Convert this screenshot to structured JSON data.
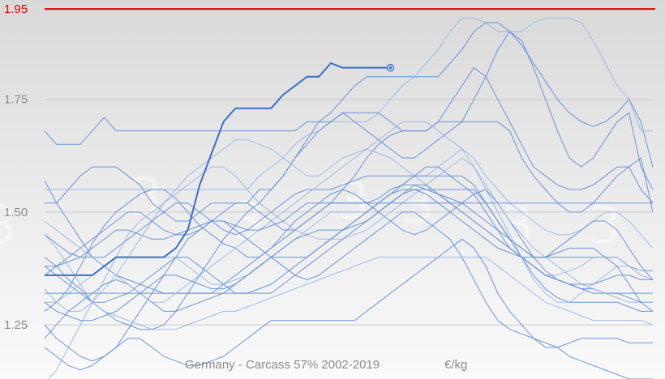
{
  "chart_data": {
    "type": "line",
    "title": "Germany - Carcass 57% 2002-2019",
    "unit": "€/kg",
    "xlabel": "",
    "ylabel": "",
    "x_count": 52,
    "ylim": [
      1.13,
      1.97
    ],
    "y_ticks": [
      1.25,
      1.5,
      1.75
    ],
    "y_tick_labels": [
      "1.25",
      "1.50",
      "1.75"
    ],
    "grid": true,
    "reference_line": {
      "value": 1.95,
      "label": "1.95",
      "color": "#e00000"
    },
    "colors": {
      "highlight": "#3a6fc8",
      "background_series": "#5b8ad8",
      "light_series": "#8fb0e6"
    },
    "watermark": "3",
    "highlighted_series": {
      "values": [
        1.36,
        1.36,
        1.36,
        1.36,
        1.36,
        1.38,
        1.4,
        1.4,
        1.4,
        1.4,
        1.4,
        1.42,
        1.46,
        1.56,
        1.63,
        1.7,
        1.73,
        1.73,
        1.73,
        1.73,
        1.76,
        1.78,
        1.8,
        1.8,
        1.83,
        1.82,
        1.82,
        1.82,
        1.82,
        1.82
      ]
    },
    "series": [
      {
        "values": [
          1.68,
          1.65,
          1.65,
          1.65,
          1.68,
          1.71,
          1.68,
          1.68,
          1.68,
          1.68,
          1.68,
          1.68,
          1.68,
          1.68,
          1.68,
          1.68,
          1.68,
          1.68,
          1.68,
          1.68,
          1.68,
          1.68,
          1.7,
          1.7,
          1.7,
          1.72,
          1.72,
          1.72,
          1.72,
          1.7,
          1.68,
          1.68,
          1.68,
          1.7,
          1.7,
          1.7,
          1.7,
          1.7,
          1.7,
          1.68,
          1.62,
          1.58,
          1.55,
          1.52,
          1.5,
          1.5,
          1.52,
          1.55,
          1.58,
          1.6,
          1.62,
          1.5
        ]
      },
      {
        "values": [
          1.52,
          1.52,
          1.55,
          1.58,
          1.6,
          1.6,
          1.6,
          1.58,
          1.56,
          1.52,
          1.5,
          1.48,
          1.48,
          1.5,
          1.52,
          1.52,
          1.52,
          1.52,
          1.55,
          1.55,
          1.58,
          1.62,
          1.66,
          1.7,
          1.72,
          1.75,
          1.78,
          1.8,
          1.8,
          1.8,
          1.8,
          1.8,
          1.8,
          1.8,
          1.83,
          1.86,
          1.9,
          1.92,
          1.92,
          1.9,
          1.87,
          1.83,
          1.79,
          1.75,
          1.72,
          1.7,
          1.69,
          1.7,
          1.72,
          1.75,
          1.7,
          1.6
        ]
      },
      {
        "values": [
          1.55,
          1.55,
          1.55,
          1.55,
          1.55,
          1.55,
          1.55,
          1.55,
          1.55,
          1.55,
          1.55,
          1.55,
          1.55,
          1.55,
          1.55,
          1.55,
          1.55,
          1.55,
          1.58,
          1.6,
          1.62,
          1.65,
          1.67,
          1.68,
          1.7,
          1.7,
          1.7,
          1.7,
          1.72,
          1.75,
          1.78,
          1.8,
          1.83,
          1.86,
          1.9,
          1.93,
          1.93,
          1.92,
          1.9,
          1.9,
          1.9,
          1.92,
          1.93,
          1.93,
          1.93,
          1.92,
          1.88,
          1.83,
          1.78,
          1.75,
          1.68,
          1.68
        ]
      },
      {
        "values": [
          1.4,
          1.38,
          1.35,
          1.33,
          1.3,
          1.28,
          1.26,
          1.25,
          1.24,
          1.24,
          1.25,
          1.28,
          1.32,
          1.36,
          1.4,
          1.44,
          1.47,
          1.5,
          1.52,
          1.55,
          1.58,
          1.62,
          1.65,
          1.68,
          1.7,
          1.72,
          1.7,
          1.68,
          1.66,
          1.64,
          1.62,
          1.62,
          1.64,
          1.66,
          1.68,
          1.7,
          1.75,
          1.8,
          1.86,
          1.9,
          1.88,
          1.82,
          1.75,
          1.68,
          1.62,
          1.6,
          1.62,
          1.66,
          1.7,
          1.72,
          1.6,
          1.55
        ]
      },
      {
        "values": [
          1.28,
          1.3,
          1.33,
          1.38,
          1.43,
          1.47,
          1.5,
          1.52,
          1.54,
          1.55,
          1.55,
          1.53,
          1.5,
          1.47,
          1.45,
          1.43,
          1.42,
          1.4,
          1.4,
          1.42,
          1.44,
          1.46,
          1.48,
          1.5,
          1.52,
          1.55,
          1.58,
          1.62,
          1.65,
          1.67,
          1.68,
          1.68,
          1.68,
          1.7,
          1.74,
          1.78,
          1.82,
          1.8,
          1.75,
          1.7,
          1.65,
          1.6,
          1.58,
          1.56,
          1.55,
          1.55,
          1.56,
          1.58,
          1.6,
          1.6,
          1.55,
          1.52
        ]
      },
      {
        "values": [
          1.33,
          1.3,
          1.28,
          1.28,
          1.3,
          1.33,
          1.36,
          1.4,
          1.44,
          1.48,
          1.52,
          1.55,
          1.58,
          1.6,
          1.62,
          1.64,
          1.66,
          1.66,
          1.65,
          1.64,
          1.62,
          1.6,
          1.58,
          1.58,
          1.6,
          1.62,
          1.63,
          1.64,
          1.63,
          1.62,
          1.6,
          1.58,
          1.58,
          1.6,
          1.62,
          1.64,
          1.62,
          1.58,
          1.55,
          1.52,
          1.5,
          1.48,
          1.46,
          1.45,
          1.45,
          1.46,
          1.48,
          1.5,
          1.5,
          1.48,
          1.45,
          1.42
        ]
      },
      {
        "values": [
          1.45,
          1.43,
          1.41,
          1.4,
          1.4,
          1.4,
          1.42,
          1.44,
          1.46,
          1.48,
          1.5,
          1.52,
          1.52,
          1.5,
          1.48,
          1.46,
          1.45,
          1.46,
          1.48,
          1.5,
          1.52,
          1.54,
          1.55,
          1.55,
          1.55,
          1.56,
          1.57,
          1.58,
          1.58,
          1.58,
          1.58,
          1.58,
          1.58,
          1.58,
          1.58,
          1.58,
          1.56,
          1.52,
          1.48,
          1.44,
          1.42,
          1.4,
          1.4,
          1.42,
          1.44,
          1.46,
          1.48,
          1.48,
          1.46,
          1.42,
          1.38,
          1.35
        ]
      },
      {
        "values": [
          1.36,
          1.38,
          1.4,
          1.42,
          1.44,
          1.46,
          1.48,
          1.5,
          1.5,
          1.48,
          1.46,
          1.45,
          1.45,
          1.46,
          1.48,
          1.5,
          1.52,
          1.52,
          1.5,
          1.48,
          1.46,
          1.46,
          1.48,
          1.5,
          1.52,
          1.52,
          1.52,
          1.52,
          1.53,
          1.55,
          1.56,
          1.56,
          1.55,
          1.54,
          1.53,
          1.52,
          1.5,
          1.48,
          1.46,
          1.44,
          1.42,
          1.4,
          1.4,
          1.4,
          1.4,
          1.4,
          1.4,
          1.4,
          1.4,
          1.38,
          1.37,
          1.37
        ]
      },
      {
        "values": [
          1.3,
          1.3,
          1.32,
          1.34,
          1.36,
          1.38,
          1.4,
          1.4,
          1.4,
          1.4,
          1.4,
          1.4,
          1.38,
          1.36,
          1.34,
          1.34,
          1.35,
          1.36,
          1.38,
          1.4,
          1.42,
          1.44,
          1.46,
          1.48,
          1.5,
          1.5,
          1.5,
          1.5,
          1.52,
          1.54,
          1.56,
          1.58,
          1.56,
          1.54,
          1.52,
          1.5,
          1.48,
          1.46,
          1.44,
          1.42,
          1.4,
          1.38,
          1.36,
          1.36,
          1.37,
          1.38,
          1.4,
          1.4,
          1.4,
          1.38,
          1.36,
          1.35
        ]
      },
      {
        "values": [
          1.38,
          1.36,
          1.34,
          1.32,
          1.3,
          1.3,
          1.31,
          1.32,
          1.34,
          1.36,
          1.38,
          1.4,
          1.4,
          1.38,
          1.36,
          1.34,
          1.32,
          1.32,
          1.33,
          1.34,
          1.36,
          1.38,
          1.4,
          1.42,
          1.44,
          1.46,
          1.48,
          1.5,
          1.52,
          1.54,
          1.56,
          1.58,
          1.6,
          1.6,
          1.58,
          1.56,
          1.54,
          1.5,
          1.46,
          1.42,
          1.4,
          1.38,
          1.36,
          1.35,
          1.34,
          1.33,
          1.32,
          1.32,
          1.32,
          1.31,
          1.3,
          1.3
        ]
      },
      {
        "values": [
          1.22,
          1.25,
          1.28,
          1.3,
          1.32,
          1.34,
          1.35,
          1.34,
          1.32,
          1.3,
          1.28,
          1.28,
          1.29,
          1.3,
          1.31,
          1.32,
          1.34,
          1.36,
          1.38,
          1.4,
          1.4,
          1.4,
          1.4,
          1.42,
          1.44,
          1.46,
          1.48,
          1.5,
          1.52,
          1.54,
          1.55,
          1.55,
          1.55,
          1.55,
          1.55,
          1.55,
          1.55,
          1.52,
          1.48,
          1.44,
          1.4,
          1.36,
          1.33,
          1.31,
          1.3,
          1.3,
          1.3,
          1.3,
          1.3,
          1.29,
          1.28,
          1.28
        ]
      },
      {
        "values": [
          1.45,
          1.42,
          1.38,
          1.34,
          1.3,
          1.28,
          1.27,
          1.26,
          1.25,
          1.24,
          1.24,
          1.24,
          1.25,
          1.26,
          1.27,
          1.28,
          1.28,
          1.29,
          1.3,
          1.31,
          1.32,
          1.33,
          1.34,
          1.35,
          1.36,
          1.37,
          1.38,
          1.39,
          1.4,
          1.4,
          1.4,
          1.4,
          1.4,
          1.4,
          1.4,
          1.4,
          1.4,
          1.4,
          1.38,
          1.36,
          1.34,
          1.32,
          1.3,
          1.29,
          1.28,
          1.27,
          1.26,
          1.26,
          1.26,
          1.26,
          1.26,
          1.25
        ]
      },
      {
        "values": [
          1.32,
          1.32,
          1.32,
          1.32,
          1.32,
          1.32,
          1.32,
          1.32,
          1.32,
          1.32,
          1.32,
          1.32,
          1.32,
          1.32,
          1.32,
          1.32,
          1.32,
          1.32,
          1.32,
          1.32,
          1.34,
          1.36,
          1.38,
          1.4,
          1.42,
          1.44,
          1.46,
          1.48,
          1.5,
          1.52,
          1.54,
          1.56,
          1.56,
          1.54,
          1.52,
          1.5,
          1.48,
          1.46,
          1.44,
          1.42,
          1.4,
          1.38,
          1.36,
          1.35,
          1.34,
          1.33,
          1.33,
          1.32,
          1.32,
          1.32,
          1.32,
          1.32
        ]
      },
      {
        "values": [
          1.57,
          1.52,
          1.48,
          1.44,
          1.4,
          1.38,
          1.36,
          1.35,
          1.34,
          1.33,
          1.32,
          1.32,
          1.32,
          1.32,
          1.32,
          1.34,
          1.36,
          1.38,
          1.4,
          1.42,
          1.45,
          1.48,
          1.5,
          1.52,
          1.54,
          1.55,
          1.54,
          1.52,
          1.5,
          1.48,
          1.46,
          1.45,
          1.46,
          1.48,
          1.5,
          1.52,
          1.54,
          1.55,
          1.52,
          1.48,
          1.44,
          1.4,
          1.37,
          1.35,
          1.34,
          1.34,
          1.34,
          1.35,
          1.36,
          1.36,
          1.35,
          1.35
        ]
      },
      {
        "values": [
          1.12,
          1.15,
          1.2,
          1.25,
          1.3,
          1.35,
          1.4,
          1.45,
          1.48,
          1.5,
          1.52,
          1.54,
          1.56,
          1.58,
          1.6,
          1.6,
          1.58,
          1.55,
          1.52,
          1.5,
          1.48,
          1.46,
          1.45,
          1.44,
          1.44,
          1.44,
          1.45,
          1.46,
          1.48,
          1.5,
          1.52,
          1.54,
          1.56,
          1.58,
          1.6,
          1.62,
          1.6,
          1.55,
          1.5,
          1.45,
          1.4,
          1.35,
          1.32,
          1.3,
          1.3,
          1.32,
          1.34,
          1.36,
          1.38,
          1.38,
          1.37,
          1.37
        ]
      },
      {
        "values": [
          1.25,
          1.22,
          1.2,
          1.18,
          1.17,
          1.18,
          1.2,
          1.22,
          1.22,
          1.2,
          1.18,
          1.17,
          1.16,
          1.16,
          1.17,
          1.18,
          1.2,
          1.22,
          1.24,
          1.26,
          1.26,
          1.26,
          1.26,
          1.26,
          1.26,
          1.26,
          1.26,
          1.28,
          1.3,
          1.32,
          1.34,
          1.36,
          1.38,
          1.4,
          1.42,
          1.44,
          1.42,
          1.38,
          1.32,
          1.28,
          1.25,
          1.22,
          1.2,
          1.2,
          1.21,
          1.22,
          1.22,
          1.22,
          1.22,
          1.21,
          1.21,
          1.21
        ]
      },
      {
        "values": [
          1.2,
          1.18,
          1.16,
          1.15,
          1.16,
          1.18,
          1.2,
          1.24,
          1.28,
          1.32,
          1.36,
          1.4,
          1.44,
          1.46,
          1.48,
          1.48,
          1.46,
          1.44,
          1.42,
          1.4,
          1.38,
          1.36,
          1.35,
          1.36,
          1.38,
          1.4,
          1.42,
          1.44,
          1.46,
          1.48,
          1.5,
          1.5,
          1.48,
          1.46,
          1.44,
          1.4,
          1.35,
          1.3,
          1.26,
          1.24,
          1.23,
          1.22,
          1.21,
          1.2,
          1.18,
          1.17,
          1.16,
          1.15,
          1.14,
          1.13,
          1.13,
          1.13
        ]
      },
      {
        "values": [
          1.48,
          1.46,
          1.44,
          1.42,
          1.4,
          1.38,
          1.36,
          1.34,
          1.32,
          1.3,
          1.3,
          1.32,
          1.34,
          1.36,
          1.38,
          1.4,
          1.42,
          1.44,
          1.46,
          1.48,
          1.5,
          1.52,
          1.54,
          1.56,
          1.58,
          1.6,
          1.62,
          1.64,
          1.66,
          1.68,
          1.7,
          1.7,
          1.7,
          1.68,
          1.66,
          1.64,
          1.6,
          1.56,
          1.52,
          1.48,
          1.45,
          1.42,
          1.4,
          1.38,
          1.36,
          1.34,
          1.33,
          1.32,
          1.31,
          1.3,
          1.3,
          1.3
        ]
      },
      {
        "values": [
          1.3,
          1.28,
          1.27,
          1.26,
          1.26,
          1.27,
          1.28,
          1.3,
          1.32,
          1.34,
          1.36,
          1.36,
          1.35,
          1.34,
          1.33,
          1.33,
          1.34,
          1.36,
          1.38,
          1.4,
          1.42,
          1.44,
          1.45,
          1.46,
          1.46,
          1.46,
          1.47,
          1.48,
          1.5,
          1.52,
          1.54,
          1.55,
          1.54,
          1.52,
          1.5,
          1.48,
          1.46,
          1.44,
          1.42,
          1.41,
          1.4,
          1.4,
          1.4,
          1.41,
          1.42,
          1.42,
          1.42,
          1.4,
          1.38,
          1.34,
          1.3,
          1.28
        ]
      },
      {
        "values": [
          1.38,
          1.38,
          1.39,
          1.4,
          1.42,
          1.44,
          1.46,
          1.46,
          1.45,
          1.44,
          1.44,
          1.45,
          1.46,
          1.47,
          1.48,
          1.48,
          1.47,
          1.46,
          1.46,
          1.47,
          1.48,
          1.5,
          1.52,
          1.52,
          1.52,
          1.52,
          1.52,
          1.52,
          1.52,
          1.52,
          1.52,
          1.52,
          1.52,
          1.52,
          1.52,
          1.52,
          1.52,
          1.52,
          1.52,
          1.52,
          1.52,
          1.52,
          1.52,
          1.52,
          1.52,
          1.52,
          1.52,
          1.52,
          1.52,
          1.52,
          1.52,
          1.52
        ]
      }
    ]
  }
}
